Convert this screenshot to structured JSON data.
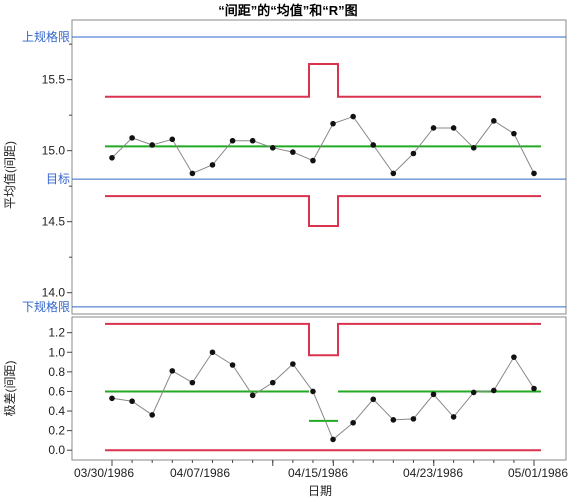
{
  "chart_data": {
    "type": "line",
    "title": "“间距”的“均值”和“R”图",
    "xlabel": "日期",
    "x_tick_labels": [
      "03/30/1986",
      "04/07/1986",
      "04/15/1986",
      "04/23/1986",
      "05/01/1986"
    ],
    "colors": {
      "limit": "#d9334d",
      "center": "#22aa22",
      "spec": "#3366cc",
      "points": "#111111",
      "connector": "#888888"
    },
    "xbar": {
      "ylabel": "平均值(间距)",
      "ylim": [
        13.85,
        15.92
      ],
      "yticks": [
        "14.0",
        "14.5",
        "15.0",
        "15.5"
      ],
      "points": [
        14.95,
        15.09,
        15.04,
        15.08,
        14.84,
        14.9,
        15.07,
        15.07,
        15.02,
        14.99,
        14.93,
        15.19,
        15.24,
        15.04,
        14.84,
        14.98,
        15.16,
        15.16,
        15.02,
        15.21,
        15.12,
        14.84
      ],
      "ucl": {
        "segments": [
          [
            15.38,
            15.61,
            15.38
          ]
        ]
      },
      "lcl": {
        "segments": [
          [
            14.68,
            14.47,
            14.68
          ]
        ]
      },
      "center": 15.03,
      "spec_limits": [
        {
          "label": "上规格限",
          "value": 15.8
        },
        {
          "label": "目标",
          "value": 14.8
        },
        {
          "label": "下规格限",
          "value": 13.9
        }
      ]
    },
    "range": {
      "ylabel": "极差(间距)",
      "ylim": [
        -0.1,
        1.36
      ],
      "yticks": [
        "0.0",
        "0.2",
        "0.4",
        "0.6",
        "0.8",
        "1.0",
        "1.2"
      ],
      "points": [
        0.53,
        0.5,
        0.36,
        0.81,
        0.69,
        1.0,
        0.87,
        0.56,
        0.69,
        0.88,
        0.6,
        0.11,
        0.28,
        0.52,
        0.31,
        0.32,
        0.57,
        0.34,
        0.59,
        0.61,
        0.95,
        0.63
      ],
      "ucl": [
        1.29,
        0.97,
        1.29
      ],
      "lcl": 0.0,
      "center": [
        0.6,
        0.3,
        0.6
      ]
    }
  }
}
